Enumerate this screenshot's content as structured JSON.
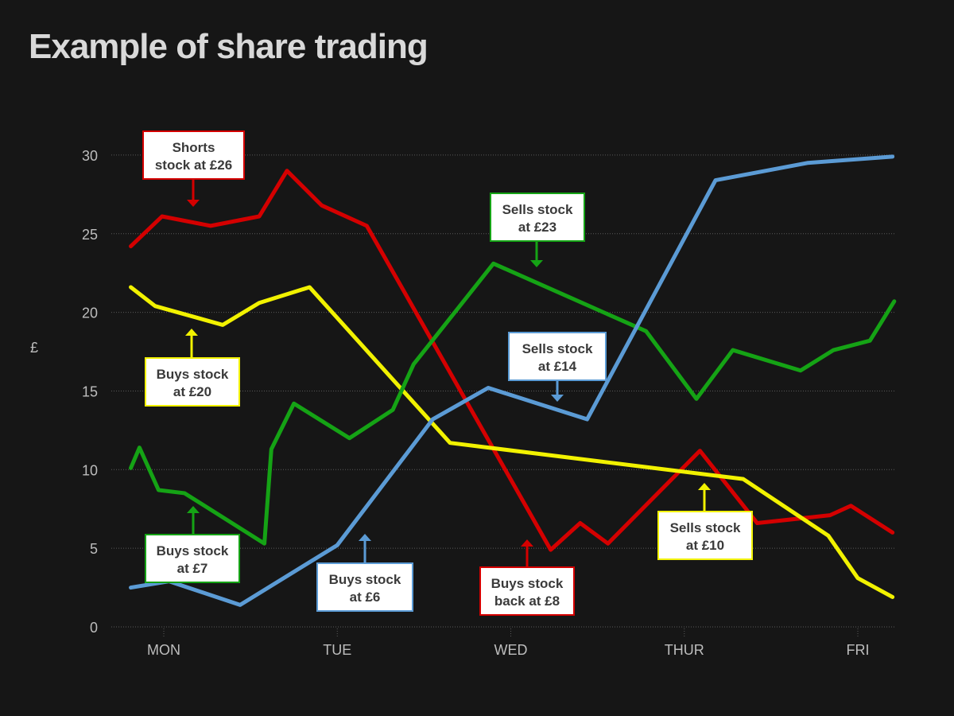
{
  "chart_data": {
    "type": "line",
    "title": "Example of share trading",
    "ylabel": "£",
    "xlabel": "",
    "ylim": [
      0,
      30
    ],
    "yticks": [
      0,
      5,
      10,
      15,
      20,
      25,
      30
    ],
    "x_ticks": [
      {
        "label": "MON",
        "value": 0
      },
      {
        "label": "TUE",
        "value": 1
      },
      {
        "label": "WED",
        "value": 2
      },
      {
        "label": "THUR",
        "value": 3
      },
      {
        "label": "FRI",
        "value": 4
      }
    ],
    "xlim": [
      -0.3,
      4.25
    ],
    "grid": true,
    "legend": "none",
    "series": [
      {
        "color": "#d40000",
        "points": [
          [
            -0.19,
            24.2
          ],
          [
            -0.01,
            26.1
          ],
          [
            0.27,
            25.5
          ],
          [
            0.55,
            26.1
          ],
          [
            0.71,
            29.0
          ],
          [
            0.91,
            26.8
          ],
          [
            1.17,
            25.5
          ],
          [
            2.23,
            4.9
          ],
          [
            2.4,
            6.6
          ],
          [
            2.56,
            5.3
          ],
          [
            3.09,
            11.2
          ],
          [
            3.42,
            6.6
          ],
          [
            3.84,
            7.1
          ],
          [
            3.96,
            7.7
          ],
          [
            4.2,
            6.0
          ]
        ]
      },
      {
        "color": "#f2f200",
        "points": [
          [
            -0.19,
            21.6
          ],
          [
            -0.05,
            20.4
          ],
          [
            0.34,
            19.2
          ],
          [
            0.55,
            20.6
          ],
          [
            0.84,
            21.6
          ],
          [
            1.65,
            11.7
          ],
          [
            3.34,
            9.4
          ],
          [
            3.83,
            5.8
          ],
          [
            4.0,
            3.1
          ],
          [
            4.2,
            1.9
          ]
        ]
      },
      {
        "color": "#15a315",
        "points": [
          [
            -0.19,
            10.1
          ],
          [
            -0.14,
            11.4
          ],
          [
            -0.03,
            8.7
          ],
          [
            0.12,
            8.5
          ],
          [
            0.58,
            5.3
          ],
          [
            0.62,
            11.3
          ],
          [
            0.75,
            14.2
          ],
          [
            1.07,
            12.0
          ],
          [
            1.32,
            13.8
          ],
          [
            1.44,
            16.7
          ],
          [
            1.9,
            23.1
          ],
          [
            2.78,
            18.8
          ],
          [
            3.07,
            14.5
          ],
          [
            3.28,
            17.6
          ],
          [
            3.67,
            16.3
          ],
          [
            3.86,
            17.6
          ],
          [
            4.07,
            18.2
          ],
          [
            4.21,
            20.7
          ]
        ]
      },
      {
        "color": "#5b9bd5",
        "points": [
          [
            -0.19,
            2.5
          ],
          [
            0.03,
            2.9
          ],
          [
            0.44,
            1.4
          ],
          [
            1.0,
            5.2
          ],
          [
            1.55,
            13.2
          ],
          [
            1.87,
            15.2
          ],
          [
            2.44,
            13.2
          ],
          [
            3.18,
            28.4
          ],
          [
            3.71,
            29.5
          ],
          [
            4.2,
            29.9
          ]
        ]
      }
    ],
    "annotations": [
      {
        "lines": [
          "Shorts",
          "stock at £26"
        ],
        "color": "#d40000"
      },
      {
        "lines": [
          "Buys stock",
          "at £20"
        ],
        "color": "#f2f200"
      },
      {
        "lines": [
          "Buys stock",
          "at £7"
        ],
        "color": "#15a315"
      },
      {
        "lines": [
          "Buys stock",
          "at £6"
        ],
        "color": "#5b9bd5"
      },
      {
        "lines": [
          "Buys stock",
          "back at £8"
        ],
        "color": "#d40000"
      },
      {
        "lines": [
          "Sells stock",
          "at £23"
        ],
        "color": "#15a315"
      },
      {
        "lines": [
          "Sells stock",
          "at £14"
        ],
        "color": "#5b9bd5"
      },
      {
        "lines": [
          "Sells stock",
          "at £10"
        ],
        "color": "#f2f200"
      }
    ]
  }
}
